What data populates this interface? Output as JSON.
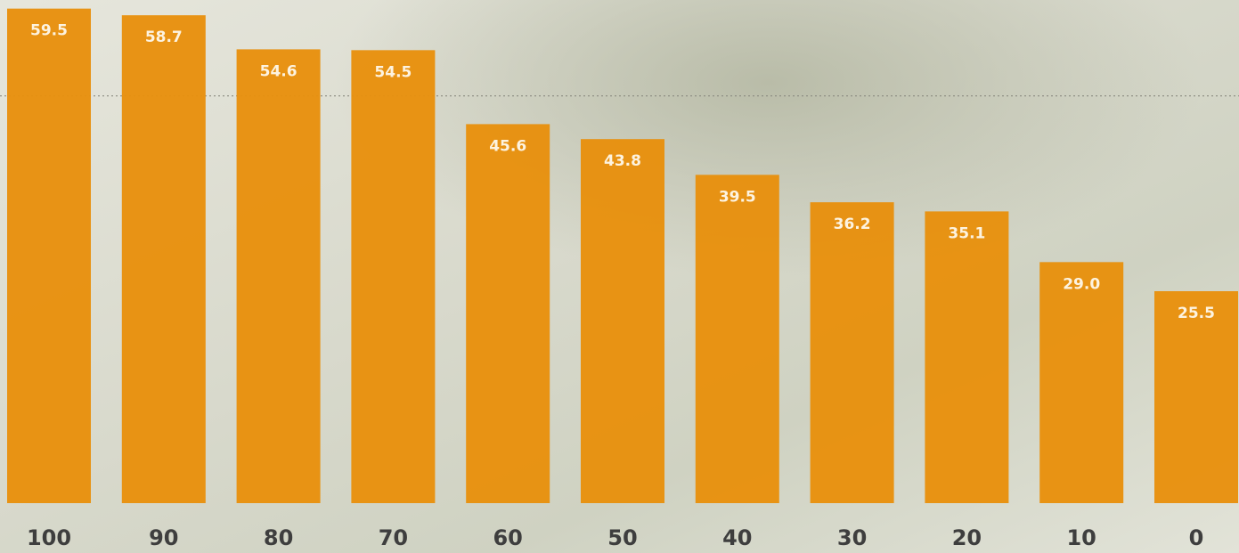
{
  "chart_data": {
    "type": "bar",
    "categories": [
      "100",
      "90",
      "80",
      "70",
      "60",
      "50",
      "40",
      "30",
      "20",
      "10",
      "0"
    ],
    "values": [
      59.5,
      58.7,
      54.6,
      54.5,
      45.6,
      43.8,
      39.5,
      36.2,
      35.1,
      29.0,
      25.5
    ],
    "value_labels": [
      "59.5",
      "58.7",
      "54.6",
      "54.5",
      "45.6",
      "43.8",
      "39.5",
      "36.2",
      "35.1",
      "29.0",
      "25.5"
    ],
    "color": "#e8900c",
    "ylim": [
      0,
      60
    ],
    "reference_line": 49
  }
}
